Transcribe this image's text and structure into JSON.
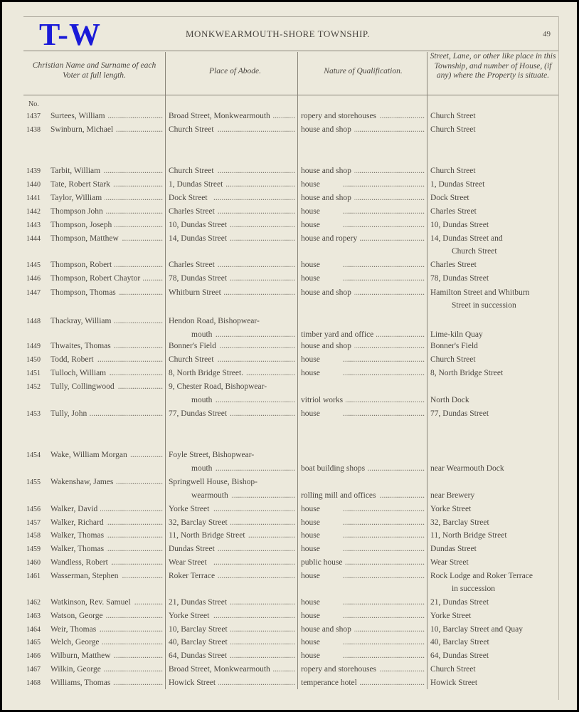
{
  "badge": "T-W",
  "title": "MONKWEARMOUTH-SHORE TOWNSHIP.",
  "page_number": "49",
  "headers": [
    "Christian Name and Surname of each Voter at full length.",
    "Place of Abode.",
    "Nature of Qualification.",
    "Street, Lane, or other like place in this Township, and number of House, (if any) where the Property is situate."
  ],
  "no_label": "No.",
  "rows": [
    {
      "no": "1437",
      "name": "Surtees, William",
      "abode": [
        "Broad Street, Monkwearmouth"
      ],
      "qual": "ropery and storehouses",
      "street": [
        "Church Street"
      ]
    },
    {
      "no": "1438",
      "name": "Swinburn, Michael",
      "abode": [
        "Church Street"
      ],
      "qual": "house and shop",
      "street": [
        "Church Street"
      ]
    },
    {
      "no": "1439",
      "name": "Tarbit, William",
      "abode": [
        "Church Street"
      ],
      "qual": "house and shop",
      "street": [
        "Church Street"
      ]
    },
    {
      "no": "1440",
      "name": "Tate, Robert Stark",
      "abode": [
        "1, Dundas Street"
      ],
      "qual": "house",
      "street": [
        "1, Dundas Street"
      ]
    },
    {
      "no": "1441",
      "name": "Taylor, William",
      "abode": [
        "Dock Street"
      ],
      "qual": "house and shop",
      "street": [
        "Dock Street"
      ]
    },
    {
      "no": "1442",
      "name": "Thompson John",
      "abode": [
        "Charles Street"
      ],
      "qual": "house",
      "street": [
        "Charles Street"
      ]
    },
    {
      "no": "1443",
      "name": "Thompson, Joseph",
      "abode": [
        "10, Dundas Street"
      ],
      "qual": "house",
      "street": [
        "10, Dundas Street"
      ]
    },
    {
      "no": "1444",
      "name": "Thompson, Matthew",
      "abode": [
        "14, Dundas Street"
      ],
      "qual": "house and ropery",
      "street": [
        "14, Dundas Street and",
        "Church Street"
      ]
    },
    {
      "no": "1445",
      "name": "Thompson, Robert",
      "abode": [
        "Charles Street"
      ],
      "qual": "house",
      "street": [
        "Charles Street"
      ]
    },
    {
      "no": "1446",
      "name": "Thompson, Robert Chaytor",
      "abode": [
        "78, Dundas Street"
      ],
      "qual": "house",
      "street": [
        "78, Dundas Street"
      ]
    },
    {
      "no": "1447",
      "name": "Thompson, Thomas",
      "abode": [
        "Whitburn Street"
      ],
      "qual": "house and shop",
      "street": [
        "Hamilton Street and Whitburn",
        "Street in succession"
      ]
    },
    {
      "no": "1448",
      "name": "Thackray, William",
      "abode": [
        "Hendon Road, Bishopwear-",
        "mouth"
      ],
      "qual": "timber yard and office",
      "street": [
        "Lime-kiln Quay"
      ]
    },
    {
      "no": "1449",
      "name": "Thwaites, Thomas",
      "abode": [
        "Bonner's Field"
      ],
      "qual": "house and shop",
      "street": [
        "Bonner's Field"
      ]
    },
    {
      "no": "1450",
      "name": "Todd, Robert",
      "abode": [
        "Church Street"
      ],
      "qual": "house",
      "street": [
        "Church Street"
      ]
    },
    {
      "no": "1451",
      "name": "Tulloch, William",
      "abode": [
        "8, North Bridge Street."
      ],
      "qual": "house",
      "street": [
        "8, North Bridge Street"
      ]
    },
    {
      "no": "1452",
      "name": "Tully, Collingwood",
      "abode": [
        "9, Chester Road, Bishopwear-",
        "mouth"
      ],
      "qual": "vitriol works",
      "street": [
        "North Dock"
      ]
    },
    {
      "no": "1453",
      "name": "Tully, John",
      "abode": [
        "77, Dundas Street"
      ],
      "qual": "house",
      "street": [
        "77, Dundas Street"
      ]
    },
    {
      "no": "1454",
      "name": "Wake, William Morgan",
      "abode": [
        "Foyle Street, Bishopwear-",
        "mouth"
      ],
      "qual": "boat building shops",
      "street": [
        "near Wearmouth Dock"
      ]
    },
    {
      "no": "1455",
      "name": "Wakenshaw, James",
      "abode": [
        "Springwell House, Bishop-",
        "wearmouth"
      ],
      "qual": "rolling mill and offices",
      "street": [
        "near Brewery"
      ]
    },
    {
      "no": "1456",
      "name": "Walker, David",
      "abode": [
        "Yorke Street"
      ],
      "qual": "house",
      "street": [
        "Yorke Street"
      ]
    },
    {
      "no": "1457",
      "name": "Walker, Richard",
      "abode": [
        "32, Barclay Street"
      ],
      "qual": "house",
      "street": [
        "32, Barclay Street"
      ]
    },
    {
      "no": "1458",
      "name": "Walker, Thomas",
      "abode": [
        "11, North Bridge Street"
      ],
      "qual": "house",
      "street": [
        "11, North Bridge Street"
      ]
    },
    {
      "no": "1459",
      "name": "Walker, Thomas",
      "abode": [
        "Dundas Street"
      ],
      "qual": "house",
      "street": [
        "Dundas Street"
      ]
    },
    {
      "no": "1460",
      "name": "Wandless, Robert",
      "abode": [
        "Wear Street"
      ],
      "qual": "public house",
      "street": [
        "Wear Street"
      ]
    },
    {
      "no": "1461",
      "name": "Wasserman, Stephen",
      "abode": [
        "Roker Terrace"
      ],
      "qual": "house",
      "street": [
        "Rock Lodge and Roker Terrace",
        "in succession"
      ]
    },
    {
      "no": "1462",
      "name": "Watkinson, Rev. Samuel",
      "abode": [
        "21, Dundas Street"
      ],
      "qual": "house",
      "street": [
        "21, Dundas Street"
      ]
    },
    {
      "no": "1463",
      "name": "Watson, George",
      "abode": [
        "Yorke Street"
      ],
      "qual": "house",
      "street": [
        "Yorke Street"
      ]
    },
    {
      "no": "1464",
      "name": "Weir, Thomas",
      "abode": [
        "10, Barclay Street"
      ],
      "qual": "house and shop",
      "street": [
        "10, Barclay Street and Quay"
      ]
    },
    {
      "no": "1465",
      "name": "Welch, George",
      "abode": [
        "40, Barclay Street"
      ],
      "qual": "house",
      "street": [
        "40, Barclay Street"
      ]
    },
    {
      "no": "1466",
      "name": "Wilburn, Matthew",
      "abode": [
        "64, Dundas Street"
      ],
      "qual": "house",
      "street": [
        "64, Dundas Street"
      ]
    },
    {
      "no": "1467",
      "name": "Wilkin, George",
      "abode": [
        "Broad Street, Monkwearmouth"
      ],
      "qual": "ropery and storehouses",
      "street": [
        "Church Street"
      ]
    },
    {
      "no": "1468",
      "name": "Williams, Thomas",
      "abode": [
        "Howick Street"
      ],
      "qual": "temperance hotel",
      "street": [
        "Howick Street"
      ]
    }
  ]
}
